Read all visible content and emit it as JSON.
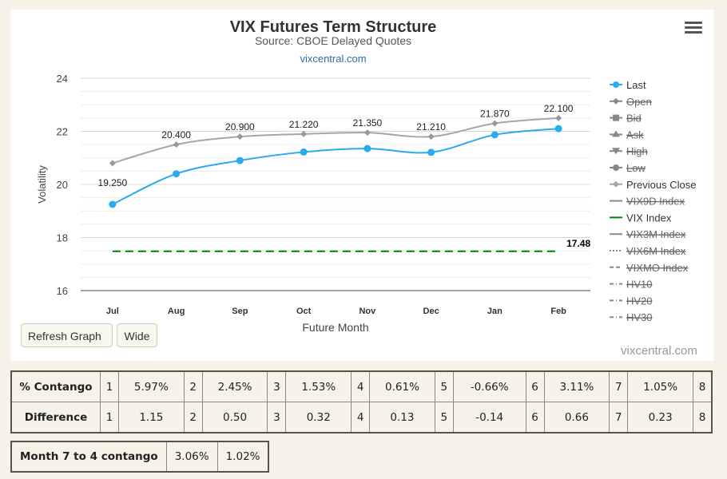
{
  "chart": {
    "title": "VIX Futures Term Structure",
    "subtitle": "Source: CBOE Delayed Quotes",
    "link": "vixcentral.com",
    "credit": "vixcentral.com",
    "menu_icon": "hamburger-menu-icon"
  },
  "controls": {
    "refresh_label": "Refresh Graph",
    "wide_label": "Wide"
  },
  "chart_data": {
    "type": "line",
    "title": "VIX Futures Term Structure",
    "subtitle": "Source: CBOE Delayed Quotes",
    "xlabel": "Future Month",
    "ylabel": "Volatility",
    "categories": [
      "Jul",
      "Aug",
      "Sep",
      "Oct",
      "Nov",
      "Dec",
      "Jan",
      "Feb"
    ],
    "ylim": [
      16,
      24
    ],
    "yticks": [
      16,
      18,
      20,
      22,
      24
    ],
    "grid": true,
    "legend_position": "right",
    "series": [
      {
        "name": "Last",
        "color": "#2baaf0",
        "values": [
          19.25,
          20.4,
          20.9,
          21.22,
          21.35,
          21.21,
          21.87,
          22.1
        ],
        "labels": [
          "19.250",
          "20.400",
          "20.900",
          "21.220",
          "21.350",
          "21.210",
          "21.870",
          "22.100"
        ],
        "visible": true
      },
      {
        "name": "Previous Close",
        "color": "#a6a6a6",
        "values": [
          20.8,
          21.5,
          21.8,
          21.9,
          21.95,
          21.8,
          22.3,
          22.5
        ],
        "visible": true
      },
      {
        "name": "VIX Index",
        "color": "#008000",
        "values": [
          17.48,
          17.48,
          17.48,
          17.48,
          17.48,
          17.48,
          17.48,
          17.48
        ],
        "end_label": "17.48",
        "visible": true
      }
    ],
    "legend": [
      {
        "name": "Last",
        "symbol": "circle",
        "color": "#2baaf0",
        "hidden": false
      },
      {
        "name": "Open",
        "symbol": "diamond",
        "color": "#555555",
        "hidden": true
      },
      {
        "name": "Bid",
        "symbol": "square",
        "color": "#555555",
        "hidden": true
      },
      {
        "name": "Ask",
        "symbol": "triangle",
        "color": "#555555",
        "hidden": true
      },
      {
        "name": "High",
        "symbol": "triangle-down",
        "color": "#555555",
        "hidden": true
      },
      {
        "name": "Low",
        "symbol": "circle",
        "color": "#555555",
        "hidden": true
      },
      {
        "name": "Previous Close",
        "symbol": "diamond",
        "color": "#a6a6a6",
        "hidden": false
      },
      {
        "name": "VIX9D Index",
        "symbol": "line",
        "color": "#555555",
        "hidden": true
      },
      {
        "name": "VIX Index",
        "symbol": "line",
        "color": "#008000",
        "hidden": false
      },
      {
        "name": "VIX3M Index",
        "symbol": "line",
        "color": "#555555",
        "hidden": true
      },
      {
        "name": "VIX6M Index",
        "symbol": "dotted",
        "color": "#555555",
        "hidden": true
      },
      {
        "name": "VIXMO Index",
        "symbol": "dash",
        "color": "#555555",
        "hidden": true
      },
      {
        "name": "HV10",
        "symbol": "dashdot",
        "color": "#555555",
        "hidden": true
      },
      {
        "name": "HV20",
        "symbol": "dashdot",
        "color": "#555555",
        "hidden": true
      },
      {
        "name": "HV30",
        "symbol": "dashdot",
        "color": "#555555",
        "hidden": true
      }
    ]
  },
  "contango_table": {
    "rows": [
      {
        "label": "% Contango",
        "cells": [
          [
            "1",
            "5.97%"
          ],
          [
            "2",
            "2.45%"
          ],
          [
            "3",
            "1.53%"
          ],
          [
            "4",
            "0.61%"
          ],
          [
            "5",
            "-0.66%"
          ],
          [
            "6",
            "3.11%"
          ],
          [
            "7",
            "1.05%"
          ],
          [
            "8",
            ""
          ]
        ]
      },
      {
        "label": "Difference",
        "cells": [
          [
            "1",
            "1.15"
          ],
          [
            "2",
            "0.50"
          ],
          [
            "3",
            "0.32"
          ],
          [
            "4",
            "0.13"
          ],
          [
            "5",
            "-0.14"
          ],
          [
            "6",
            "0.66"
          ],
          [
            "7",
            "0.23"
          ],
          [
            "8",
            ""
          ]
        ]
      }
    ]
  },
  "month_table": {
    "label": "Month 7 to 4 contango",
    "values": [
      "3.06%",
      "1.02%"
    ]
  }
}
